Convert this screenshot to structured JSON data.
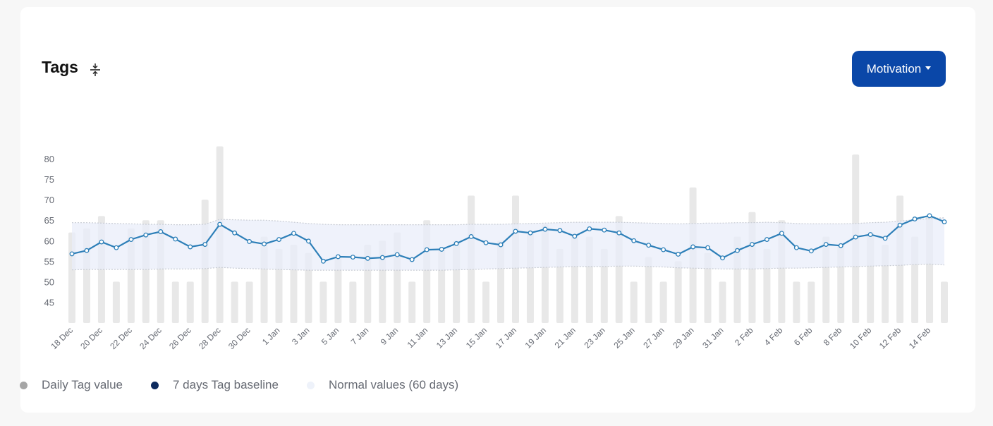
{
  "header": {
    "title": "Tags",
    "collapse_icon": "collapse-vertical-icon",
    "dropdown_label": "Motivation"
  },
  "legend": [
    {
      "label": "Daily Tag value",
      "color": "#a6a6a6"
    },
    {
      "label": "7 days Tag baseline",
      "color": "#0d2a5e"
    },
    {
      "label": "Normal values (60 days)",
      "color": "#eef2fa"
    }
  ],
  "colors": {
    "bar": "#e8e8e8",
    "line": "#2d7fb8",
    "band_fill": "#e9eef9",
    "band_border": "#c8ccd4",
    "accent": "#0a47a8"
  },
  "chart_data": {
    "type": "bar",
    "x_tick_labels": [
      "18 Dec",
      "20 Dec",
      "22 Dec",
      "24 Dec",
      "26 Dec",
      "28 Dec",
      "30 Dec",
      "1 Jan",
      "3 Jan",
      "5 Jan",
      "7 Jan",
      "9 Jan",
      "11 Jan",
      "13 Jan",
      "15 Jan",
      "17 Jan",
      "19 Jan",
      "21 Jan",
      "23 Jan",
      "25 Jan",
      "27 Jan",
      "29 Jan",
      "31 Jan",
      "2 Feb",
      "4 Feb",
      "6 Feb",
      "8 Feb",
      "10 Feb",
      "12 Feb",
      "14 Feb"
    ],
    "y_ticks": [
      45,
      50,
      55,
      60,
      65,
      70,
      75,
      80
    ],
    "ylim": [
      40,
      83
    ],
    "series": [
      {
        "name": "Daily Tag value",
        "type": "bar",
        "values": [
          62,
          63,
          66,
          50,
          63,
          65,
          65,
          50,
          50,
          70,
          83,
          50,
          50,
          61,
          58,
          59,
          57,
          50,
          56,
          50,
          59,
          60,
          62,
          50,
          65,
          58,
          60,
          71,
          50,
          60,
          71,
          62,
          64,
          58,
          61,
          61,
          58,
          66,
          50,
          56,
          50,
          55,
          73,
          57,
          50,
          61,
          67,
          58,
          65,
          50,
          50,
          61,
          59,
          81,
          62,
          59,
          71,
          61,
          66,
          50
        ]
      },
      {
        "name": "7 days Tag baseline",
        "type": "line",
        "values": [
          56.8,
          57.6,
          59.7,
          58.3,
          60.3,
          61.4,
          62.2,
          60.4,
          58.5,
          59.1,
          64.0,
          61.9,
          59.8,
          59.2,
          60.3,
          61.8,
          59.9,
          55.0,
          56.1,
          56.0,
          55.7,
          55.9,
          56.6,
          55.4,
          57.8,
          57.9,
          59.3,
          61.0,
          59.5,
          59.0,
          62.3,
          61.9,
          62.8,
          62.5,
          61.1,
          62.9,
          62.6,
          61.9,
          60.0,
          58.9,
          57.8,
          56.7,
          58.5,
          58.3,
          55.8,
          57.6,
          59.1,
          60.3,
          61.8,
          58.3,
          57.5,
          59.1,
          58.8,
          60.9,
          61.5,
          60.6,
          63.8,
          65.3,
          66.1,
          64.6
        ]
      },
      {
        "name": "Normal values (60 days)",
        "type": "area",
        "upper": [
          64.4,
          64.4,
          64.3,
          64.2,
          64.1,
          64.0,
          64.0,
          63.9,
          63.9,
          64.0,
          65.2,
          65.1,
          65.0,
          65.0,
          64.8,
          64.5,
          64.2,
          64.0,
          63.9,
          63.9,
          63.9,
          63.9,
          63.9,
          63.9,
          63.9,
          63.9,
          63.9,
          64.0,
          64.0,
          64.0,
          64.1,
          64.2,
          64.3,
          64.4,
          64.5,
          64.5,
          64.5,
          64.5,
          64.4,
          64.3,
          64.2,
          64.1,
          64.2,
          64.3,
          64.3,
          64.4,
          64.4,
          64.5,
          64.4,
          64.2,
          64.1,
          64.1,
          64.1,
          64.2,
          64.4,
          64.5,
          64.8,
          65.1,
          65.4,
          65.6
        ],
        "lower": [
          52.9,
          53.0,
          53.0,
          53.0,
          53.0,
          53.0,
          53.1,
          53.1,
          53.1,
          53.2,
          53.5,
          53.3,
          53.2,
          53.1,
          53.0,
          52.9,
          52.8,
          52.8,
          52.8,
          52.8,
          52.8,
          52.8,
          52.8,
          52.8,
          52.8,
          52.8,
          52.9,
          53.0,
          53.1,
          53.2,
          53.3,
          53.4,
          53.5,
          53.6,
          53.7,
          53.7,
          53.7,
          53.8,
          53.8,
          53.7,
          53.6,
          53.4,
          53.3,
          53.2,
          53.1,
          53.1,
          53.1,
          53.2,
          53.3,
          53.3,
          53.4,
          53.5,
          53.6,
          53.7,
          53.8,
          53.9,
          54.0,
          54.2,
          54.3,
          54.1
        ]
      }
    ],
    "grid": false,
    "legend_position": "bottom-left"
  }
}
